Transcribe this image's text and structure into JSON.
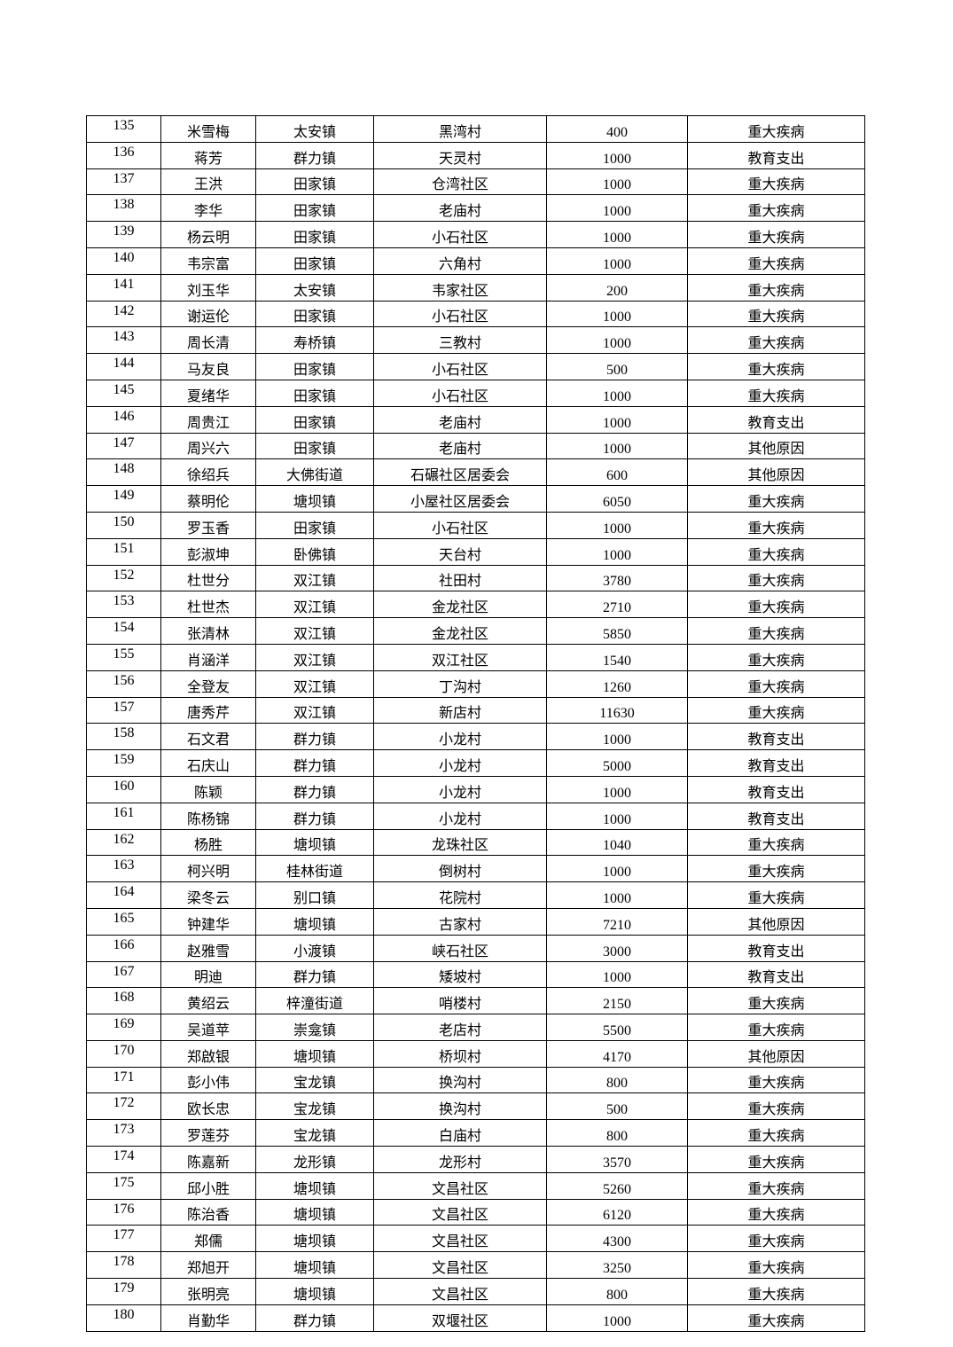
{
  "table": {
    "rows": [
      [
        "135",
        "米雪梅",
        "太安镇",
        "黑湾村",
        "400",
        "重大疾病"
      ],
      [
        "136",
        "蒋芳",
        "群力镇",
        "天灵村",
        "1000",
        "教育支出"
      ],
      [
        "137",
        "王洪",
        "田家镇",
        "仓湾社区",
        "1000",
        "重大疾病"
      ],
      [
        "138",
        "李华",
        "田家镇",
        "老庙村",
        "1000",
        "重大疾病"
      ],
      [
        "139",
        "杨云明",
        "田家镇",
        "小石社区",
        "1000",
        "重大疾病"
      ],
      [
        "140",
        "韦宗富",
        "田家镇",
        "六角村",
        "1000",
        "重大疾病"
      ],
      [
        "141",
        "刘玉华",
        "太安镇",
        "韦家社区",
        "200",
        "重大疾病"
      ],
      [
        "142",
        "谢运伦",
        "田家镇",
        "小石社区",
        "1000",
        "重大疾病"
      ],
      [
        "143",
        "周长清",
        "寿桥镇",
        "三教村",
        "1000",
        "重大疾病"
      ],
      [
        "144",
        "马友良",
        "田家镇",
        "小石社区",
        "500",
        "重大疾病"
      ],
      [
        "145",
        "夏绪华",
        "田家镇",
        "小石社区",
        "1000",
        "重大疾病"
      ],
      [
        "146",
        "周贵江",
        "田家镇",
        "老庙村",
        "1000",
        "教育支出"
      ],
      [
        "147",
        "周兴六",
        "田家镇",
        "老庙村",
        "1000",
        "其他原因"
      ],
      [
        "148",
        "徐绍兵",
        "大佛街道",
        "石碾社区居委会",
        "600",
        "其他原因"
      ],
      [
        "149",
        "蔡明伦",
        "塘坝镇",
        "小屋社区居委会",
        "6050",
        "重大疾病"
      ],
      [
        "150",
        "罗玉香",
        "田家镇",
        "小石社区",
        "1000",
        "重大疾病"
      ],
      [
        "151",
        "彭淑坤",
        "卧佛镇",
        "天台村",
        "1000",
        "重大疾病"
      ],
      [
        "152",
        "杜世分",
        "双江镇",
        "社田村",
        "3780",
        "重大疾病"
      ],
      [
        "153",
        "杜世杰",
        "双江镇",
        "金龙社区",
        "2710",
        "重大疾病"
      ],
      [
        "154",
        "张清林",
        "双江镇",
        "金龙社区",
        "5850",
        "重大疾病"
      ],
      [
        "155",
        "肖涵洋",
        "双江镇",
        "双江社区",
        "1540",
        "重大疾病"
      ],
      [
        "156",
        "全登友",
        "双江镇",
        "丁沟村",
        "1260",
        "重大疾病"
      ],
      [
        "157",
        "唐秀芹",
        "双江镇",
        "新店村",
        "11630",
        "重大疾病"
      ],
      [
        "158",
        "石文君",
        "群力镇",
        "小龙村",
        "1000",
        "教育支出"
      ],
      [
        "159",
        "石庆山",
        "群力镇",
        "小龙村",
        "5000",
        "教育支出"
      ],
      [
        "160",
        "陈颖",
        "群力镇",
        "小龙村",
        "1000",
        "教育支出"
      ],
      [
        "161",
        "陈杨锦",
        "群力镇",
        "小龙村",
        "1000",
        "教育支出"
      ],
      [
        "162",
        "杨胜",
        "塘坝镇",
        "龙珠社区",
        "1040",
        "重大疾病"
      ],
      [
        "163",
        "柯兴明",
        "桂林街道",
        "倒树村",
        "1000",
        "重大疾病"
      ],
      [
        "164",
        "梁冬云",
        "别口镇",
        "花院村",
        "1000",
        "重大疾病"
      ],
      [
        "165",
        "钟建华",
        "塘坝镇",
        "古家村",
        "7210",
        "其他原因"
      ],
      [
        "166",
        "赵雅雪",
        "小渡镇",
        "峡石社区",
        "3000",
        "教育支出"
      ],
      [
        "167",
        "明迪",
        "群力镇",
        "矮坡村",
        "1000",
        "教育支出"
      ],
      [
        "168",
        "黄绍云",
        "梓潼街道",
        "哨楼村",
        "2150",
        "重大疾病"
      ],
      [
        "169",
        "吴道苹",
        "崇龛镇",
        "老店村",
        "5500",
        "重大疾病"
      ],
      [
        "170",
        "郑啟银",
        "塘坝镇",
        "桥坝村",
        "4170",
        "其他原因"
      ],
      [
        "171",
        "彭小伟",
        "宝龙镇",
        "换沟村",
        "800",
        "重大疾病"
      ],
      [
        "172",
        "欧长忠",
        "宝龙镇",
        "换沟村",
        "500",
        "重大疾病"
      ],
      [
        "173",
        "罗莲芬",
        "宝龙镇",
        "白庙村",
        "800",
        "重大疾病"
      ],
      [
        "174",
        "陈嘉新",
        "龙形镇",
        "龙形村",
        "3570",
        "重大疾病"
      ],
      [
        "175",
        "邱小胜",
        "塘坝镇",
        "文昌社区",
        "5260",
        "重大疾病"
      ],
      [
        "176",
        "陈治香",
        "塘坝镇",
        "文昌社区",
        "6120",
        "重大疾病"
      ],
      [
        "177",
        "郑儒",
        "塘坝镇",
        "文昌社区",
        "4300",
        "重大疾病"
      ],
      [
        "178",
        "郑旭开",
        "塘坝镇",
        "文昌社区",
        "3250",
        "重大疾病"
      ],
      [
        "179",
        "张明亮",
        "塘坝镇",
        "文昌社区",
        "800",
        "重大疾病"
      ],
      [
        "180",
        "肖勤华",
        "群力镇",
        "双堰社区",
        "1000",
        "重大疾病"
      ]
    ]
  }
}
